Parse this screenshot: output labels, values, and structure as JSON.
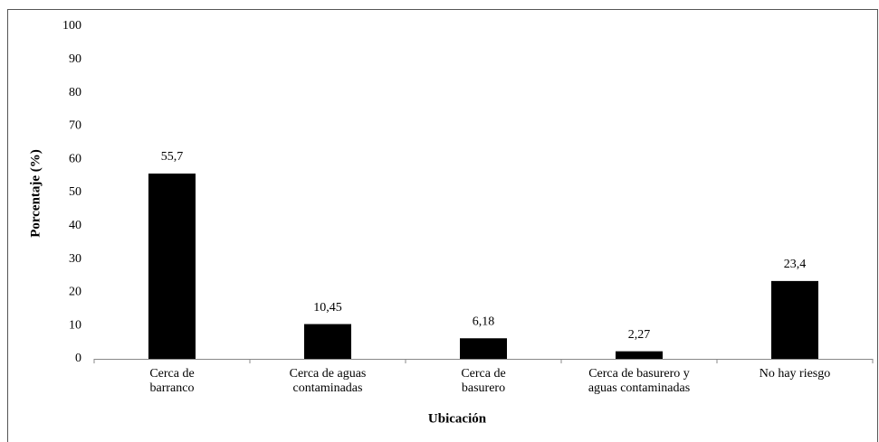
{
  "chart_data": {
    "type": "bar",
    "x_label": "Ubicación",
    "y_label": "Porcentaje (%)",
    "categories": [
      "Cerca de\nbarranco",
      "Cerca de aguas\ncontaminadas",
      "Cerca de\nbasurero",
      "Cerca de basurero y\naguas contaminadas",
      "No hay riesgo"
    ],
    "values": [
      55.7,
      10.45,
      6.18,
      2.27,
      23.4
    ],
    "value_labels": [
      "55,7",
      "10,45",
      "6,18",
      "2,27",
      "23,4"
    ],
    "color": "#000000",
    "ylim": [
      0,
      100
    ],
    "yticks": [
      0,
      10,
      20,
      30,
      40,
      50,
      60,
      70,
      80,
      90,
      100
    ],
    "grid": false
  }
}
